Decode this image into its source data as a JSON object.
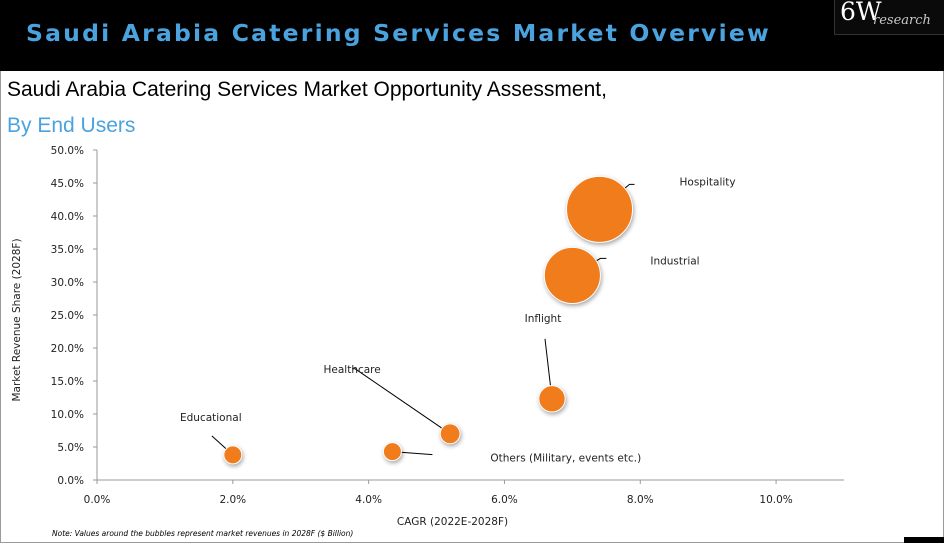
{
  "header": {
    "banner_title": "Saudi Arabia Catering Services Market Overview",
    "logo_main": "6W",
    "logo_sub": "research",
    "heading": "Saudi Arabia Catering Services Market Opportunity Assessment,",
    "subheading": "By End Users",
    "note": "Note: Values around the bubbles represent market revenues in 2028F ($ Billion)",
    "colors": {
      "banner_bg": "#000000",
      "accent": "#4aa3df",
      "bubble": "#f07c1c"
    }
  },
  "chart_data": {
    "type": "scatter",
    "title": "Saudi Arabia Catering Services Market Opportunity Assessment, By End Users",
    "xlabel": "CAGR (2022E-2028F)",
    "ylabel": "Market Revenue Share (2028F)",
    "xlim": [
      0,
      11
    ],
    "ylim": [
      0,
      50
    ],
    "x_ticks": [
      "0.0%",
      "2.0%",
      "4.0%",
      "6.0%",
      "8.0%",
      "10.0%"
    ],
    "x_tick_values": [
      0,
      2,
      4,
      6,
      8,
      10
    ],
    "y_ticks": [
      "0.0%",
      "5.0%",
      "10.0%",
      "15.0%",
      "20.0%",
      "25.0%",
      "30.0%",
      "35.0%",
      "40.0%",
      "45.0%",
      "50.0%"
    ],
    "y_tick_values": [
      0,
      5,
      10,
      15,
      20,
      25,
      30,
      35,
      40,
      45,
      50
    ],
    "grid": false,
    "legend": "none",
    "points": [
      {
        "name": "Hospitality",
        "x": 7.4,
        "y": 41.0,
        "size": 1.0
      },
      {
        "name": "Industrial",
        "x": 7.0,
        "y": 31.0,
        "size": 0.85
      },
      {
        "name": "Inflight",
        "x": 6.7,
        "y": 12.3,
        "size": 0.4
      },
      {
        "name": "Healthcare",
        "x": 5.2,
        "y": 7.0,
        "size": 0.3
      },
      {
        "name": "Others (Military, events etc.)",
        "x": 4.35,
        "y": 4.3,
        "size": 0.2
      },
      {
        "name": "Educational",
        "x": 2.0,
        "y": 3.8,
        "size": 0.2
      }
    ]
  }
}
